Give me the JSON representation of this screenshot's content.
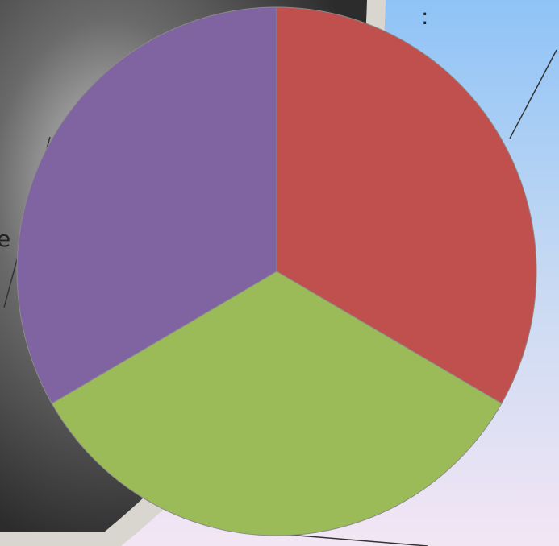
{
  "chart_data": {
    "type": "pie",
    "categories": [
      null,
      null,
      null
    ],
    "values": [
      33.3,
      33.3,
      33.3
    ],
    "colors": [
      "#c0504d",
      "#9bbb59",
      "#8064a2"
    ],
    "annotations": [
      ":",
      "e"
    ]
  }
}
